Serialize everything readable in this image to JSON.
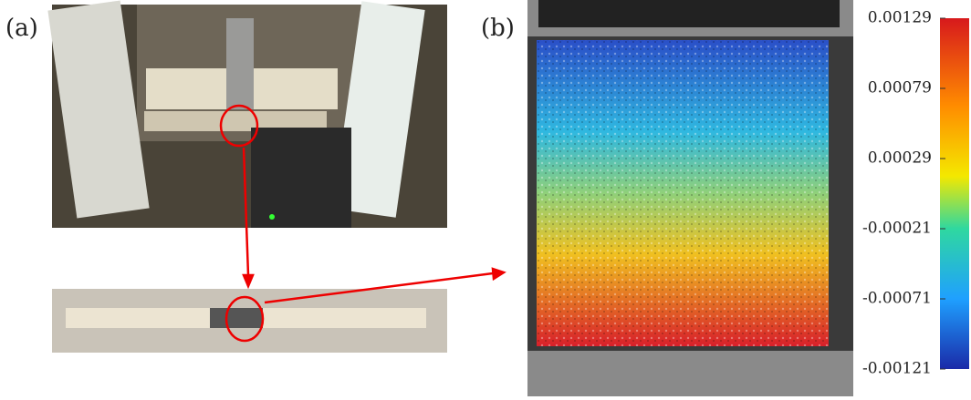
{
  "panels": [
    {
      "label": "(a)"
    },
    {
      "label": "(b)"
    }
  ],
  "colorbar": {
    "lim": [
      -0.00121,
      0.00129
    ],
    "ticks": [
      0.00129,
      0.00079,
      0.00029,
      -0.00021,
      -0.00071,
      -0.00121
    ]
  }
}
